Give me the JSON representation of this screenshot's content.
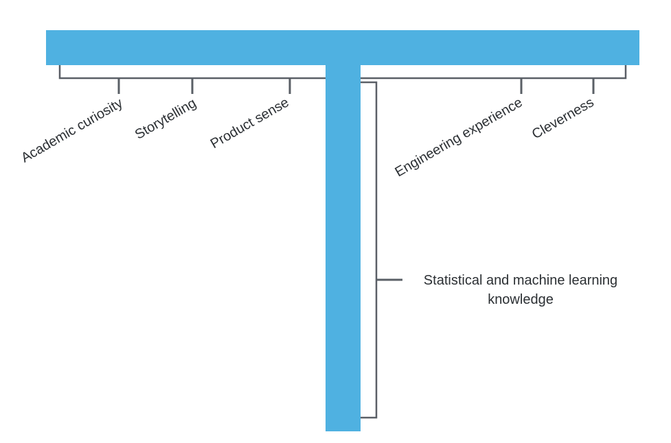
{
  "colors": {
    "bar": "#4fb1e1",
    "bracket": "#5a5f66",
    "text": "#2b2f33"
  },
  "broad_skills": [
    "Academic curiosity",
    "Storytelling",
    "Product sense",
    "Engineering experience",
    "Cleverness"
  ],
  "deep_skill": {
    "line1": "Statistical and machine learning",
    "line2": "knowledge"
  }
}
